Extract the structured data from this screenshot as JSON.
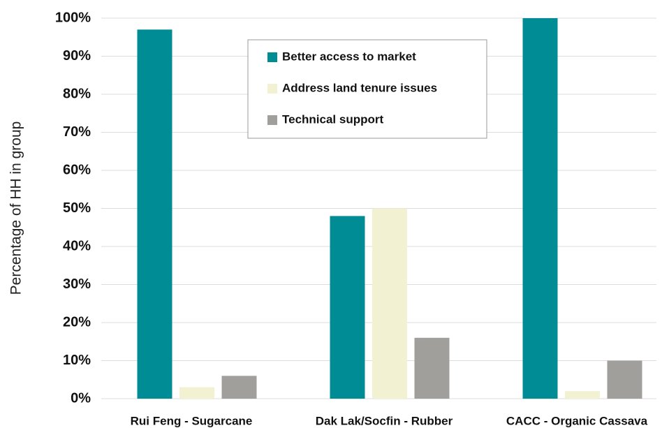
{
  "chart_data": {
    "type": "bar",
    "y_label": "Percentage of HH in group",
    "categories": [
      "Rui Feng - Sugarcane",
      "Dak Lak/Socfin - Rubber",
      "CACC - Organic Cassava"
    ],
    "series": [
      {
        "name": "Better access to market",
        "color": "#008c95",
        "values": [
          97,
          48,
          100
        ]
      },
      {
        "name": "Address land tenure issues",
        "color": "#f2f2d3",
        "values": [
          3,
          50,
          2
        ]
      },
      {
        "name": "Technical support",
        "color": "#a09f9c",
        "values": [
          6,
          16,
          10
        ]
      }
    ],
    "ylim": [
      0,
      100
    ],
    "yticks": [
      {
        "value": 0,
        "label": "0%"
      },
      {
        "value": 10,
        "label": "10%"
      },
      {
        "value": 20,
        "label": "20%"
      },
      {
        "value": 30,
        "label": "30%"
      },
      {
        "value": 40,
        "label": "40%"
      },
      {
        "value": 50,
        "label": "50%"
      },
      {
        "value": 60,
        "label": "60%"
      },
      {
        "value": 70,
        "label": "70%"
      },
      {
        "value": 80,
        "label": "80%"
      },
      {
        "value": 90,
        "label": "90%"
      },
      {
        "value": 100,
        "label": "100%"
      }
    ],
    "grid": true
  }
}
